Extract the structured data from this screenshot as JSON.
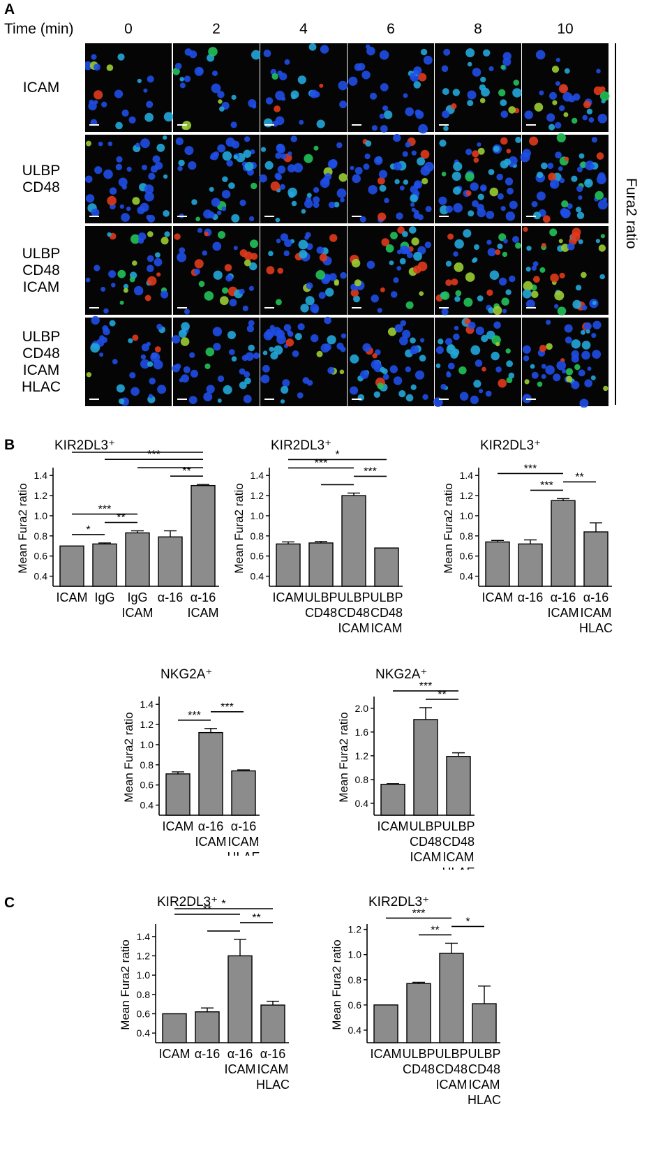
{
  "panel_a": {
    "letter": "A",
    "time_label": "Time (min)",
    "time_points": [
      "0",
      "2",
      "4",
      "6",
      "8",
      "10"
    ],
    "rows": [
      {
        "lines": [
          "ICAM"
        ]
      },
      {
        "lines": [
          "ULBP",
          "CD48"
        ]
      },
      {
        "lines": [
          "ULBP",
          "CD48",
          "ICAM"
        ]
      },
      {
        "lines": [
          "ULBP",
          "CD48",
          "ICAM",
          "HLAC"
        ]
      }
    ],
    "side_label": "Fura2 ratio"
  },
  "panel_b": {
    "letter": "B"
  },
  "panel_c": {
    "letter": "C"
  },
  "chart_data": [
    {
      "type": "bar",
      "panel": "B",
      "title": "KIR2DL3⁺",
      "ylabel": "Mean Fura2 ratio",
      "ylim": [
        0.3,
        1.45
      ],
      "yticks": [
        "0.4",
        "0.6",
        "0.8",
        "1.0",
        "1.2",
        "1.4"
      ],
      "categories": [
        [
          "ICAM"
        ],
        [
          "IgG"
        ],
        [
          "IgG",
          "ICAM"
        ],
        [
          "α-16"
        ],
        [
          "α-16",
          "ICAM"
        ]
      ],
      "values": [
        0.7,
        0.72,
        0.83,
        0.79,
        1.3
      ],
      "errors": [
        0.0,
        0.01,
        0.02,
        0.06,
        0.01
      ],
      "significance": [
        {
          "from": 0,
          "to": 1,
          "label": "*"
        },
        {
          "from": 0,
          "to": 2,
          "label": "***"
        },
        {
          "from": 1,
          "to": 2,
          "label": "**"
        },
        {
          "from": 3,
          "to": 4,
          "label": "**"
        },
        {
          "from": 2,
          "to": 4,
          "label": ""
        },
        {
          "from": 0,
          "to": 4,
          "label": ""
        },
        {
          "from": 1,
          "to": 4,
          "label": "***"
        }
      ]
    },
    {
      "type": "bar",
      "panel": "B",
      "title": "KIR2DL3⁺",
      "ylabel": "Mean Fura2 ratio",
      "ylim": [
        0.3,
        1.45
      ],
      "yticks": [
        "0.4",
        "0.6",
        "0.8",
        "1.0",
        "1.2",
        "1.4"
      ],
      "categories": [
        [
          "ICAM"
        ],
        [
          "ULBP",
          "CD48"
        ],
        [
          "ULBP",
          "CD48",
          "ICAM"
        ],
        [
          "ULBP",
          "CD48",
          "ICAM",
          "HLAC"
        ]
      ],
      "values": [
        0.72,
        0.73,
        1.2,
        0.68
      ],
      "errors": [
        0.02,
        0.015,
        0.025,
        0.0
      ],
      "significance": [
        {
          "from": 0,
          "to": 3,
          "label": "*"
        },
        {
          "from": 0,
          "to": 2,
          "label": "***"
        },
        {
          "from": 1,
          "to": 2,
          "label": ""
        },
        {
          "from": 2,
          "to": 3,
          "label": "***"
        }
      ]
    },
    {
      "type": "bar",
      "panel": "B",
      "title": "KIR2DL3⁺",
      "ylabel": "Mean Fura2 ratio",
      "ylim": [
        0.3,
        1.45
      ],
      "yticks": [
        "0.4",
        "0.6",
        "0.8",
        "1.0",
        "1.2",
        "1.4"
      ],
      "categories": [
        [
          "ICAM"
        ],
        [
          "α-16"
        ],
        [
          "α-16",
          "ICAM"
        ],
        [
          "α-16",
          "ICAM",
          "HLAC"
        ]
      ],
      "values": [
        0.74,
        0.72,
        1.15,
        0.84
      ],
      "errors": [
        0.015,
        0.04,
        0.02,
        0.09
      ],
      "significance": [
        {
          "from": 0,
          "to": 2,
          "label": "***"
        },
        {
          "from": 1,
          "to": 2,
          "label": "***"
        },
        {
          "from": 2,
          "to": 3,
          "label": "**"
        }
      ]
    },
    {
      "type": "bar",
      "panel": "B",
      "title": "NKG2A⁺",
      "ylabel": "Mean Fura2 ratio",
      "ylim": [
        0.3,
        1.45
      ],
      "yticks": [
        "0.4",
        "0.6",
        "0.8",
        "1.0",
        "1.2",
        "1.4"
      ],
      "categories": [
        [
          "ICAM"
        ],
        [
          "α-16",
          "ICAM"
        ],
        [
          "α-16",
          "ICAM",
          "HLAE"
        ]
      ],
      "values": [
        0.71,
        1.12,
        0.74
      ],
      "errors": [
        0.02,
        0.04,
        0.01
      ],
      "significance": [
        {
          "from": 0,
          "to": 1,
          "label": "***"
        },
        {
          "from": 1,
          "to": 2,
          "label": "***"
        }
      ]
    },
    {
      "type": "bar",
      "panel": "B",
      "title": "NKG2A⁺",
      "ylabel": "Mean Fura2 ratio",
      "ylim": [
        0.2,
        2.15
      ],
      "yticks": [
        "0.4",
        "0.8",
        "1.2",
        "1.6",
        "2.0"
      ],
      "categories": [
        [
          "ICAM"
        ],
        [
          "ULBP",
          "CD48",
          "ICAM"
        ],
        [
          "ULBP",
          "CD48",
          "ICAM",
          "HLAE"
        ]
      ],
      "values": [
        0.72,
        1.81,
        1.19
      ],
      "errors": [
        0.01,
        0.2,
        0.06
      ],
      "significance": [
        {
          "from": 0,
          "to": 2,
          "label": "***"
        },
        {
          "from": 1,
          "to": 2,
          "label": "**"
        }
      ]
    },
    {
      "type": "bar",
      "panel": "C",
      "title": "KIR2DL3⁺",
      "ylabel": "Mean Fura2 ratio",
      "ylim": [
        0.3,
        1.5
      ],
      "yticks": [
        "0.4",
        "0.6",
        "0.8",
        "1.0",
        "1.2",
        "1.4"
      ],
      "categories": [
        [
          "ICAM"
        ],
        [
          "α-16"
        ],
        [
          "α-16",
          "ICAM"
        ],
        [
          "α-16",
          "ICAM",
          "HLAC"
        ]
      ],
      "values": [
        0.6,
        0.62,
        1.2,
        0.69
      ],
      "errors": [
        0.0,
        0.04,
        0.17,
        0.04
      ],
      "significance": [
        {
          "from": 0,
          "to": 3,
          "label": "*"
        },
        {
          "from": 0,
          "to": 2,
          "label": "**"
        },
        {
          "from": 1,
          "to": 2,
          "label": ""
        },
        {
          "from": 2,
          "to": 3,
          "label": "**"
        }
      ]
    },
    {
      "type": "bar",
      "panel": "C",
      "title": "KIR2DL3⁺",
      "ylabel": "Mean Fura2 ratio",
      "ylim": [
        0.3,
        1.22
      ],
      "yticks": [
        "0.4",
        "0.6",
        "0.8",
        "1.0",
        "1.2"
      ],
      "categories": [
        [
          "ICAM"
        ],
        [
          "ULBP",
          "CD48"
        ],
        [
          "ULBP",
          "CD48",
          "ICAM"
        ],
        [
          "ULBP",
          "CD48",
          "ICAM",
          "HLAC"
        ]
      ],
      "values": [
        0.6,
        0.77,
        1.01,
        0.61
      ],
      "errors": [
        0.0,
        0.01,
        0.08,
        0.14
      ],
      "significance": [
        {
          "from": 0,
          "to": 2,
          "label": "***"
        },
        {
          "from": 1,
          "to": 2,
          "label": "**"
        },
        {
          "from": 2,
          "to": 3,
          "label": "*"
        }
      ]
    }
  ]
}
